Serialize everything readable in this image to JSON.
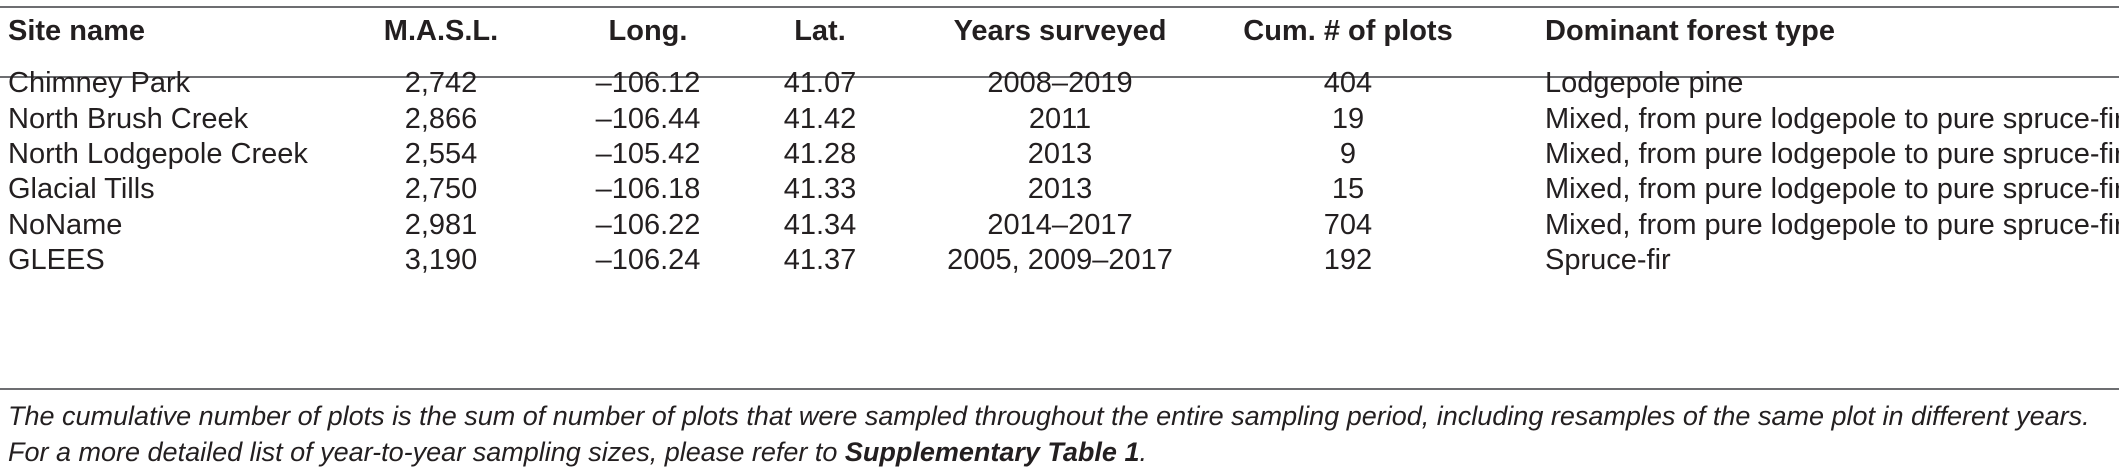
{
  "table": {
    "headers": [
      "Site name",
      "M.A.S.L.",
      "Long.",
      "Lat.",
      "Years surveyed",
      "Cum. # of plots",
      "Dominant forest type"
    ],
    "rows": [
      [
        "Chimney Park",
        "2,742",
        "–106.12",
        "41.07",
        "2008–2019",
        "404",
        "Lodgepole pine"
      ],
      [
        "North Brush Creek",
        "2,866",
        "–106.44",
        "41.42",
        "2011",
        "19",
        "Mixed, from pure lodgepole to pure spruce-fir"
      ],
      [
        "North Lodgepole Creek",
        "2,554",
        "–105.42",
        "41.28",
        "2013",
        "9",
        "Mixed, from pure lodgepole to pure spruce-fir"
      ],
      [
        "Glacial Tills",
        "2,750",
        "–106.18",
        "41.33",
        "2013",
        "15",
        "Mixed, from pure lodgepole to pure spruce-fir"
      ],
      [
        "NoName",
        "2,981",
        "–106.22",
        "41.34",
        "2014–2017",
        "704",
        "Mixed, from pure lodgepole to pure spruce-fir"
      ],
      [
        "GLEES",
        "3,190",
        "–106.24",
        "41.37",
        "2005, 2009–2017",
        "192",
        "Spruce-fir"
      ]
    ]
  },
  "footnote": {
    "text": "The cumulative number of plots is the sum of number of plots that were sampled throughout the entire sampling period, including resamples of the same plot in different years. For a more detailed list of year-to-year sampling sizes, please refer to ",
    "link": "Supplementary Table 1",
    "end": "."
  }
}
